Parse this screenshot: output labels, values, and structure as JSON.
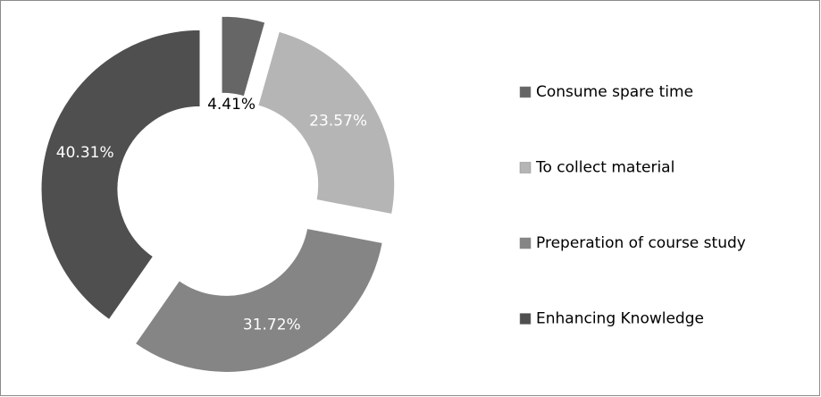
{
  "chart_data": {
    "type": "pie",
    "categories": [
      "Consume spare time",
      "To collect material",
      "Preperation of course study",
      "Enhancing Knowledge"
    ],
    "values": [
      4.41,
      23.57,
      31.72,
      40.31
    ],
    "value_labels": [
      "4.41%",
      "23.57%",
      "31.72%",
      "40.31%"
    ],
    "colors": [
      "#666666",
      "#b5b5b5",
      "#858585",
      "#4f4f4f"
    ],
    "legend": "right"
  }
}
